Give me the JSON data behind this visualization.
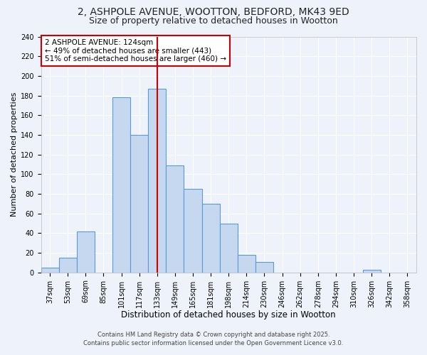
{
  "title": "2, ASHPOLE AVENUE, WOOTTON, BEDFORD, MK43 9ED",
  "subtitle": "Size of property relative to detached houses in Wootton",
  "xlabel": "Distribution of detached houses by size in Wootton",
  "ylabel": "Number of detached properties",
  "bar_labels": [
    "37sqm",
    "53sqm",
    "69sqm",
    "85sqm",
    "101sqm",
    "117sqm",
    "133sqm",
    "149sqm",
    "165sqm",
    "181sqm",
    "198sqm",
    "214sqm",
    "230sqm",
    "246sqm",
    "262sqm",
    "278sqm",
    "294sqm",
    "310sqm",
    "326sqm",
    "342sqm",
    "358sqm"
  ],
  "bar_values": [
    5,
    15,
    42,
    0,
    178,
    140,
    187,
    109,
    85,
    70,
    50,
    18,
    11,
    0,
    0,
    0,
    0,
    0,
    3,
    0,
    0
  ],
  "bar_color": "#c5d8f0",
  "bar_edge_color": "#5b9bd5",
  "vline_x": 6.0,
  "vline_color": "#cc0000",
  "ylim": [
    0,
    240
  ],
  "yticks": [
    0,
    20,
    40,
    60,
    80,
    100,
    120,
    140,
    160,
    180,
    200,
    220,
    240
  ],
  "annotation_box_text": "2 ASHPOLE AVENUE: 124sqm\n← 49% of detached houses are smaller (443)\n51% of semi-detached houses are larger (460) →",
  "annotation_box_color": "#ffffff",
  "annotation_box_edge": "#cc0000",
  "bg_color": "#eef2fb",
  "grid_color": "#ffffff",
  "footer_line1": "Contains HM Land Registry data © Crown copyright and database right 2025.",
  "footer_line2": "Contains public sector information licensed under the Open Government Licence v3.0.",
  "title_fontsize": 10,
  "subtitle_fontsize": 9,
  "xlabel_fontsize": 8.5,
  "ylabel_fontsize": 8,
  "tick_fontsize": 7,
  "footer_fontsize": 6,
  "annot_fontsize": 7.5
}
